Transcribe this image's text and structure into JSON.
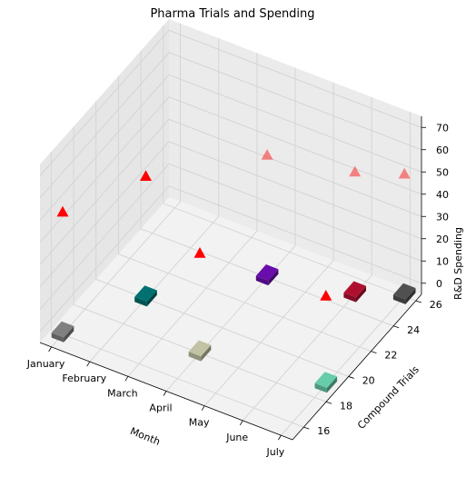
{
  "chart_data": {
    "type": "3d-scatter-bar",
    "title": "Pharma Trials and Spending",
    "xlabel": "Month",
    "ylabel": "Compound Trials",
    "zlabel": "R&D Spending",
    "x_ticks": [
      "January",
      "February",
      "March",
      "April",
      "May",
      "June",
      "July"
    ],
    "y_ticks": [
      16,
      18,
      20,
      22,
      24,
      26
    ],
    "z_ticks": [
      0,
      10,
      20,
      30,
      40,
      50,
      60,
      70
    ],
    "xlim": [
      -0.3,
      6.3
    ],
    "ylim": [
      15,
      26.5
    ],
    "zlim": [
      -5,
      75
    ],
    "bars": [
      {
        "month": "January",
        "trials": 16,
        "color": "#808080"
      },
      {
        "month": "February",
        "trials": 20,
        "color": "#007070"
      },
      {
        "month": "April",
        "trials": 24,
        "color": "#6a0dad"
      },
      {
        "month": "April",
        "trials": 18,
        "color": "#c2c2a4"
      },
      {
        "month": "June",
        "trials": 25,
        "color": "#b01030"
      },
      {
        "month": "July",
        "trials": 26,
        "color": "#505050"
      },
      {
        "month": "July",
        "trials": 19,
        "color": "#66ccaa"
      }
    ],
    "markers": [
      {
        "month": "January",
        "trials": 16,
        "spending": 50,
        "color": "#ff0000",
        "alpha": 1.0
      },
      {
        "month": "February",
        "trials": 20,
        "spending": 50,
        "color": "#ff0000",
        "alpha": 1.0
      },
      {
        "month": "April",
        "trials": 18,
        "spending": 40,
        "color": "#ff0000",
        "alpha": 1.0
      },
      {
        "month": "April",
        "trials": 24,
        "spending": 50,
        "color": "#ff0000",
        "alpha": 0.45
      },
      {
        "month": "June",
        "trials": 25,
        "spending": 50,
        "color": "#ff0000",
        "alpha": 0.45
      },
      {
        "month": "July",
        "trials": 19,
        "spending": 35,
        "color": "#ff0000",
        "alpha": 1.0
      },
      {
        "month": "July",
        "trials": 26,
        "spending": 50,
        "color": "#ff0000",
        "alpha": 0.45
      }
    ]
  }
}
